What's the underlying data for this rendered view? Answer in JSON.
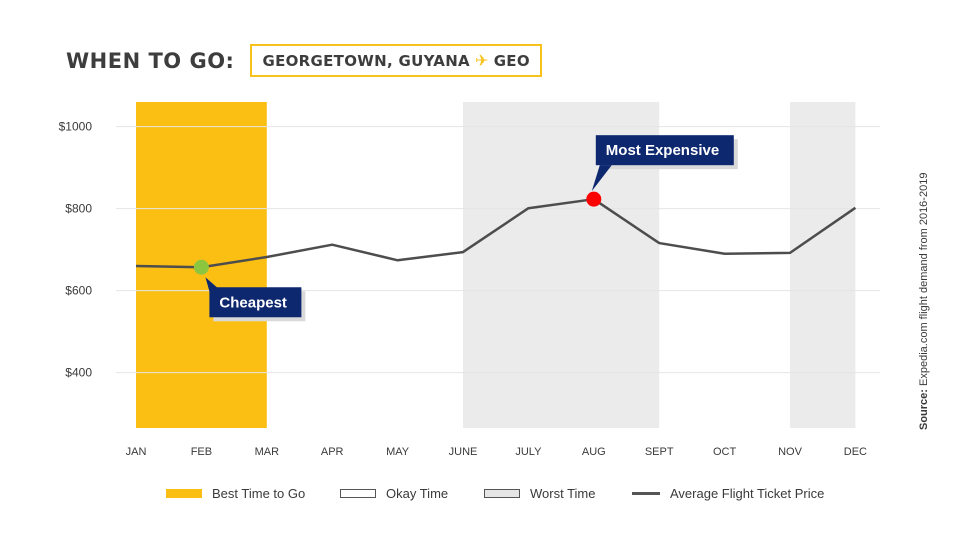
{
  "header": {
    "title": "WHEN TO GO:",
    "destination_city": "GEORGETOWN, GUYANA",
    "plane_icon": "airplane-icon",
    "airport_code": "GEO"
  },
  "source": {
    "label": "Source:",
    "text": "Expedia.com flight demand from 2016-2019"
  },
  "legend": {
    "best": "Best Time to Go",
    "okay": "Okay Time",
    "worst": "Worst Time",
    "line": "Average Flight Ticket Price"
  },
  "colors": {
    "best": "#fbbf14",
    "worst": "#ebebeb",
    "line": "#4d4d4d",
    "cheapest_marker": "#8cc63f",
    "expensive_marker": "#ff0000",
    "callout": "#0e2870"
  },
  "chart_data": {
    "type": "line",
    "categories": [
      "JAN",
      "FEB",
      "MAR",
      "APR",
      "MAY",
      "JUNE",
      "JULY",
      "AUG",
      "SEPT",
      "OCT",
      "NOV",
      "DEC"
    ],
    "series": [
      {
        "values": [
          660,
          657,
          682,
          712,
          674,
          694,
          801,
          823,
          716,
          690,
          692,
          802
        ]
      }
    ],
    "y_ticks": [
      400,
      600,
      800,
      1000
    ],
    "y_tick_labels": [
      "$400",
      "$600",
      "$800",
      "$1000"
    ],
    "ylim": [
      265,
      1060
    ],
    "grid": true,
    "bands": [
      {
        "kind": "best",
        "from": "JAN",
        "to": "MAR"
      },
      {
        "kind": "worst",
        "from": "JUNE",
        "to": "SEPT"
      },
      {
        "kind": "worst",
        "from": "NOV",
        "to": "DEC"
      }
    ],
    "annotations": [
      {
        "label": "Cheapest",
        "month": "FEB",
        "value": 657
      },
      {
        "label": "Most Expensive",
        "month": "AUG",
        "value": 823
      }
    ]
  }
}
